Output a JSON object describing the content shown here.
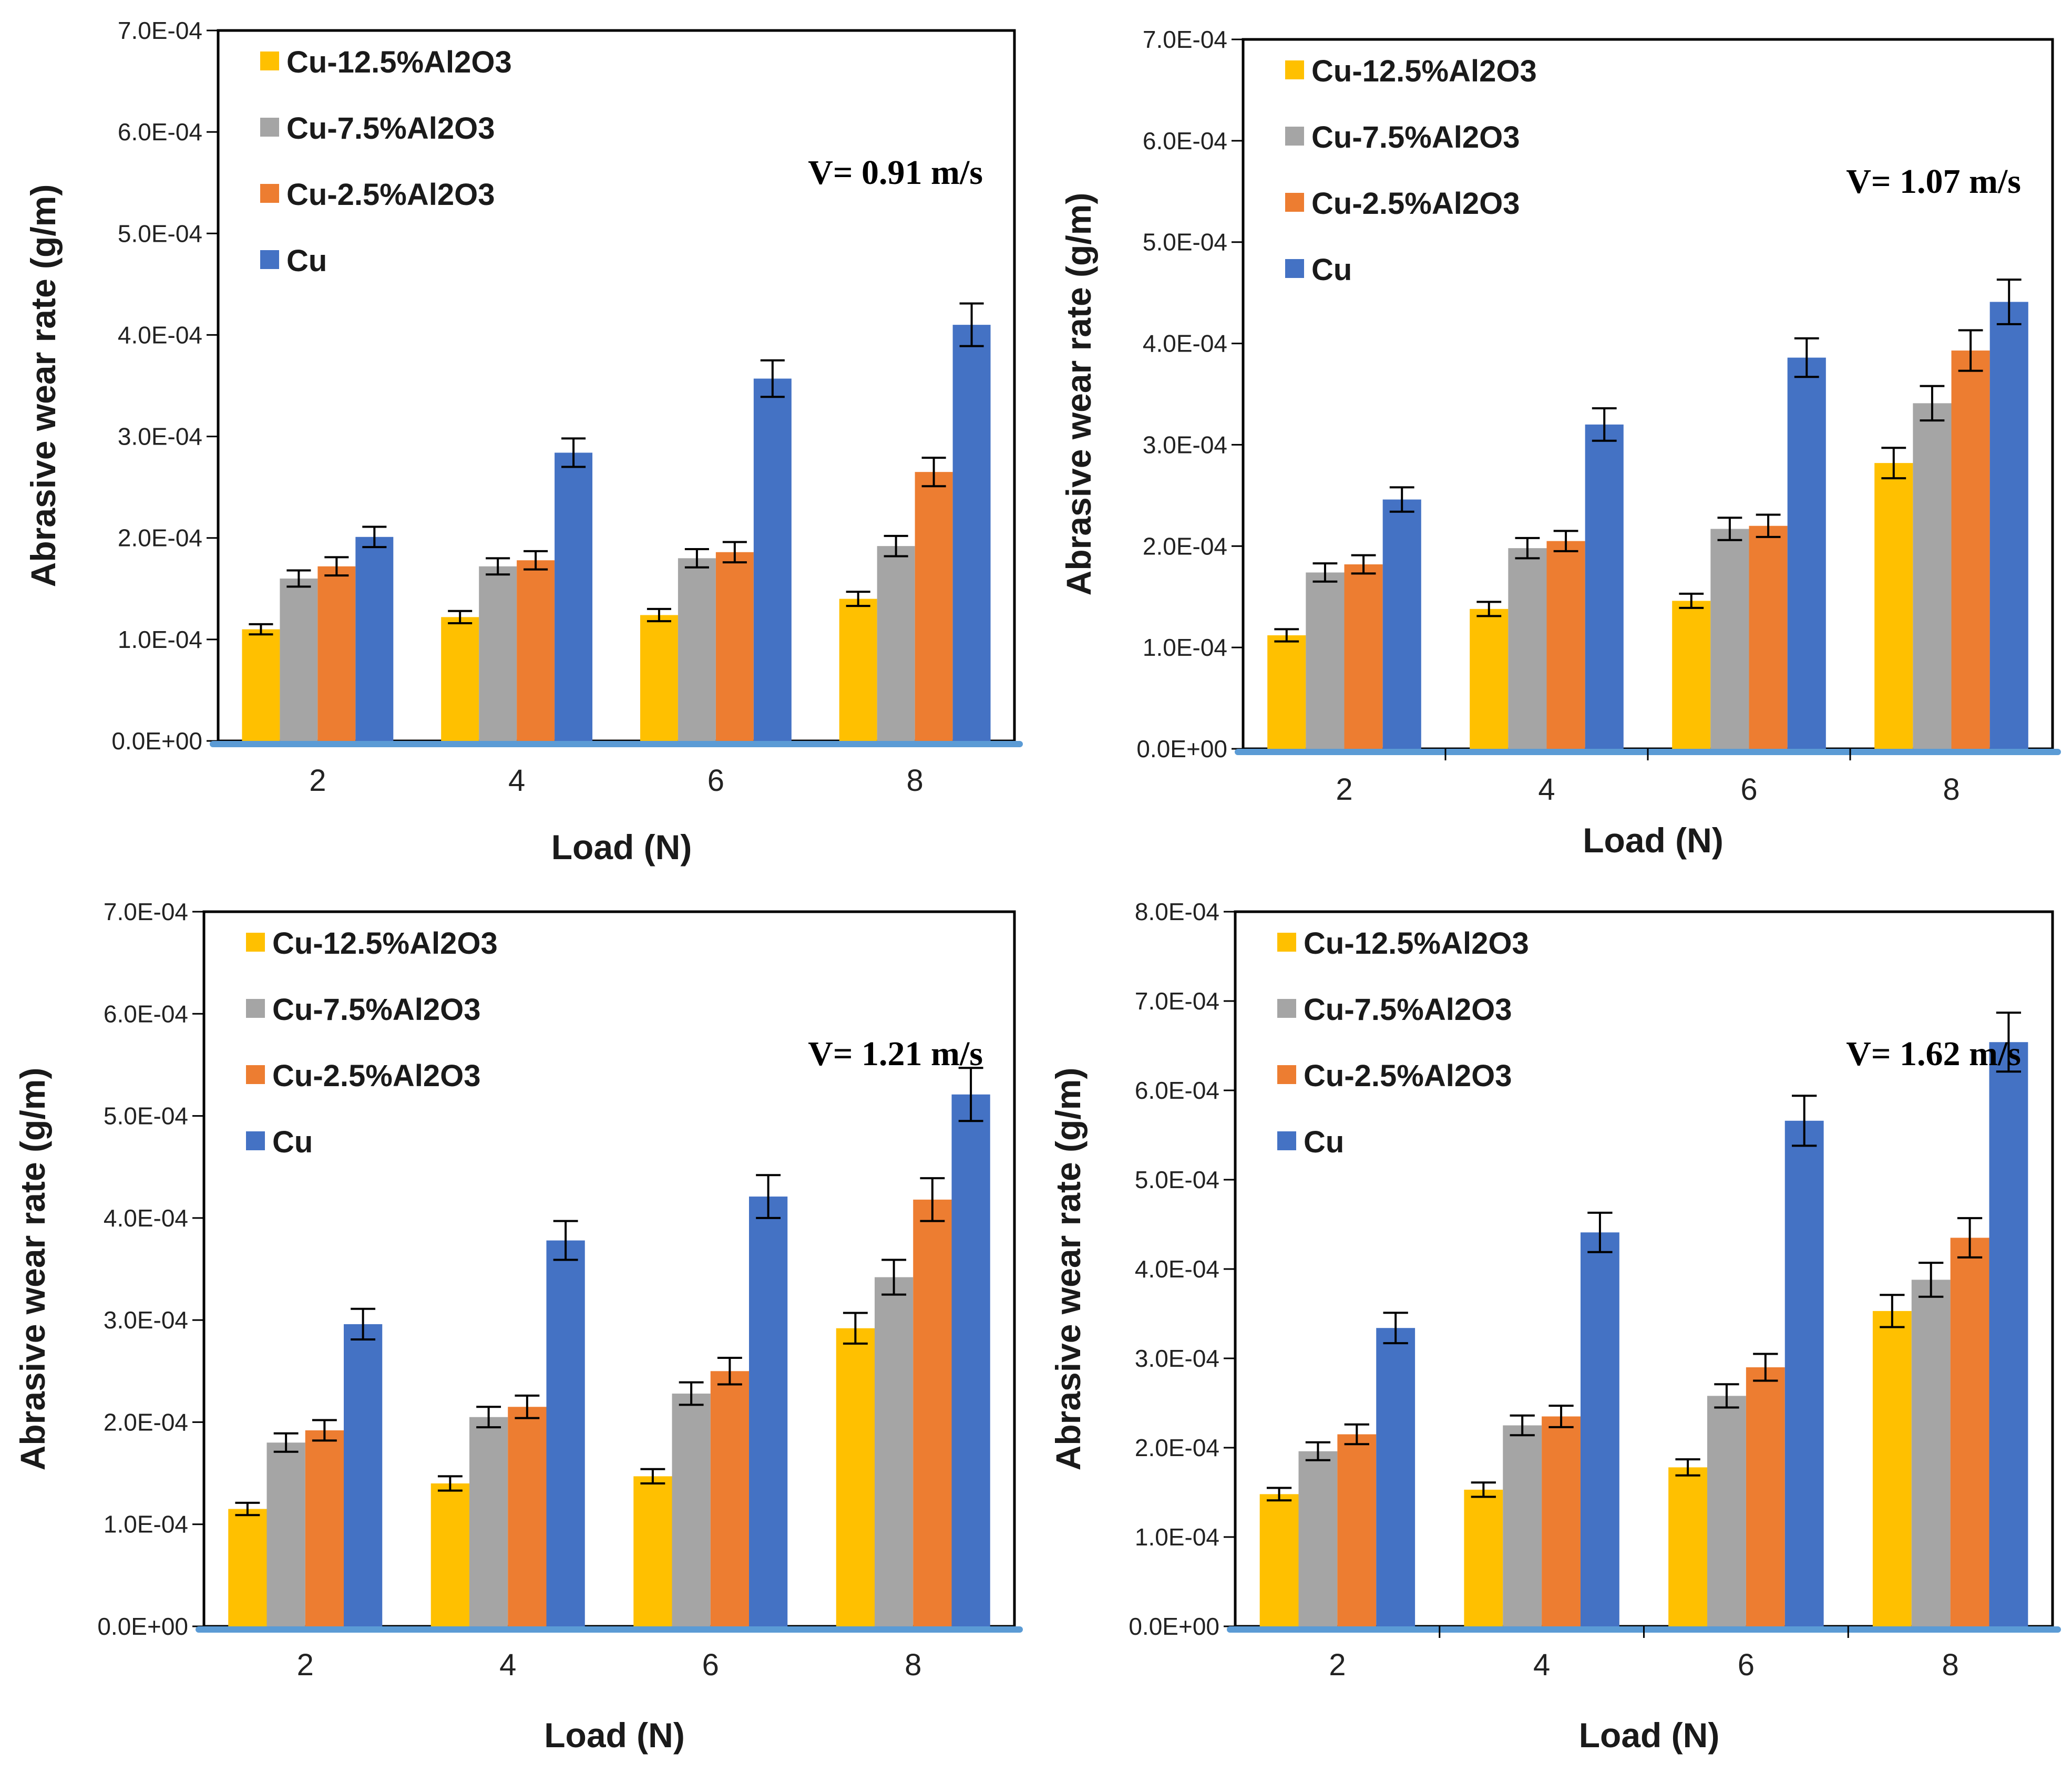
{
  "figure": {
    "ylabel": "Abrasive wear rate (g/m)",
    "xlabel": "Load (N)",
    "series_colors": {
      "Cu-12.5%Al2O3": "#FFC000",
      "Cu-7.5%Al2O3": "#A5A5A5",
      "Cu-2.5%Al2O3": "#ED7D31",
      "Cu": "#4472C4"
    }
  },
  "chart_data": [
    {
      "type": "bar",
      "annotation": "V= 0.91 m/s",
      "xlabel": "Load (N)",
      "ylabel": "Abrasive wear rate (g/m)",
      "categories": [
        "2",
        "4",
        "6",
        "8"
      ],
      "ylim": [
        0,
        0.0007
      ],
      "yticks": [
        0,
        0.0001,
        0.0002,
        0.0003,
        0.0004,
        0.0005,
        0.0006,
        0.0007
      ],
      "ytick_labels": [
        "0.0E+00",
        "1.0E-04",
        "2.0E-04",
        "3.0E-04",
        "4.0E-04",
        "5.0E-04",
        "6.0E-04",
        "7.0E-04"
      ],
      "legend": "top-left",
      "series": [
        {
          "name": "Cu-12.5%Al2O3",
          "color": "#FFC000",
          "values": [
            0.00011,
            0.000122,
            0.000124,
            0.00014
          ],
          "errors": [
            5e-06,
            6e-06,
            6e-06,
            7e-06
          ]
        },
        {
          "name": "Cu-7.5%Al2O3",
          "color": "#A5A5A5",
          "values": [
            0.00016,
            0.000172,
            0.00018,
            0.000192
          ],
          "errors": [
            8e-06,
            8e-06,
            9e-06,
            1e-05
          ]
        },
        {
          "name": "Cu-2.5%Al2O3",
          "color": "#ED7D31",
          "values": [
            0.000172,
            0.000178,
            0.000186,
            0.000265
          ],
          "errors": [
            9e-06,
            9e-06,
            1e-05,
            1.4e-05
          ]
        },
        {
          "name": "Cu",
          "color": "#4472C4",
          "values": [
            0.000201,
            0.000284,
            0.000357,
            0.00041
          ],
          "errors": [
            1e-05,
            1.4e-05,
            1.8e-05,
            2.1e-05
          ]
        }
      ]
    },
    {
      "type": "bar",
      "annotation": "V= 1.07 m/s",
      "xlabel": "Load (N)",
      "ylabel": "Abrasive wear rate (g/m)",
      "categories": [
        "2",
        "4",
        "6",
        "8"
      ],
      "ylim": [
        0,
        0.0007
      ],
      "yticks": [
        0,
        0.0001,
        0.0002,
        0.0003,
        0.0004,
        0.0005,
        0.0006,
        0.0007
      ],
      "ytick_labels": [
        "0.0E+00",
        "1.0E-04",
        "2.0E-04",
        "3.0E-04",
        "4.0E-04",
        "5.0E-04",
        "6.0E-04",
        "7.0E-04"
      ],
      "legend": "top-left",
      "series": [
        {
          "name": "Cu-12.5%Al2O3",
          "color": "#FFC000",
          "values": [
            0.000112,
            0.000138,
            0.000146,
            0.000282
          ],
          "errors": [
            6e-06,
            7e-06,
            7e-06,
            1.5e-05
          ]
        },
        {
          "name": "Cu-7.5%Al2O3",
          "color": "#A5A5A5",
          "values": [
            0.000174,
            0.000198,
            0.000217,
            0.000341
          ],
          "errors": [
            9e-06,
            1e-05,
            1.1e-05,
            1.7e-05
          ]
        },
        {
          "name": "Cu-2.5%Al2O3",
          "color": "#ED7D31",
          "values": [
            0.000182,
            0.000205,
            0.00022,
            0.000393
          ],
          "errors": [
            9e-06,
            1e-05,
            1.1e-05,
            2e-05
          ]
        },
        {
          "name": "Cu",
          "color": "#4472C4",
          "values": [
            0.000246,
            0.00032,
            0.000386,
            0.000441
          ],
          "errors": [
            1.2e-05,
            1.6e-05,
            1.9e-05,
            2.2e-05
          ]
        }
      ]
    },
    {
      "type": "bar",
      "annotation": "V= 1.21 m/s",
      "xlabel": "Load (N)",
      "ylabel": "Abrasive wear rate (g/m)",
      "categories": [
        "2",
        "4",
        "6",
        "8"
      ],
      "ylim": [
        0,
        0.0007
      ],
      "yticks": [
        0,
        0.0001,
        0.0002,
        0.0003,
        0.0004,
        0.0005,
        0.0006,
        0.0007
      ],
      "ytick_labels": [
        "0.0E+00",
        "1.0E-04",
        "2.0E-04",
        "3.0E-04",
        "4.0E-04",
        "5.0E-04",
        "6.0E-04",
        "7.0E-04"
      ],
      "legend": "top-left",
      "series": [
        {
          "name": "Cu-12.5%Al2O3",
          "color": "#FFC000",
          "values": [
            0.000115,
            0.00014,
            0.000147,
            0.000292
          ],
          "errors": [
            6e-06,
            7e-06,
            7e-06,
            1.5e-05
          ]
        },
        {
          "name": "Cu-7.5%Al2O3",
          "color": "#A5A5A5",
          "values": [
            0.00018,
            0.000205,
            0.000228,
            0.000342
          ],
          "errors": [
            9e-06,
            1e-05,
            1.1e-05,
            1.7e-05
          ]
        },
        {
          "name": "Cu-2.5%Al2O3",
          "color": "#ED7D31",
          "values": [
            0.000192,
            0.000215,
            0.00025,
            0.000418
          ],
          "errors": [
            1e-05,
            1.1e-05,
            1.3e-05,
            2.1e-05
          ]
        },
        {
          "name": "Cu",
          "color": "#4472C4",
          "values": [
            0.000296,
            0.000378,
            0.000421,
            0.000521
          ],
          "errors": [
            1.5e-05,
            1.9e-05,
            2.1e-05,
            2.6e-05
          ]
        }
      ]
    },
    {
      "type": "bar",
      "annotation": "V= 1.62 m/s",
      "xlabel": "Load (N)",
      "ylabel": "Abrasive wear rate (g/m)",
      "categories": [
        "2",
        "4",
        "6",
        "8"
      ],
      "ylim": [
        0,
        0.0008
      ],
      "yticks": [
        0,
        0.0001,
        0.0002,
        0.0003,
        0.0004,
        0.0005,
        0.0006,
        0.0007,
        0.0008
      ],
      "ytick_labels": [
        "0.0E+00",
        "1.0E-04",
        "2.0E-04",
        "3.0E-04",
        "4.0E-04",
        "5.0E-04",
        "6.0E-04",
        "7.0E-04",
        "8.0E-04"
      ],
      "legend": "top-left",
      "series": [
        {
          "name": "Cu-12.5%Al2O3",
          "color": "#FFC000",
          "values": [
            0.000148,
            0.000153,
            0.000178,
            0.000353
          ],
          "errors": [
            7e-06,
            8e-06,
            9e-06,
            1.8e-05
          ]
        },
        {
          "name": "Cu-7.5%Al2O3",
          "color": "#A5A5A5",
          "values": [
            0.000196,
            0.000225,
            0.000258,
            0.000388
          ],
          "errors": [
            1e-05,
            1.1e-05,
            1.3e-05,
            1.9e-05
          ]
        },
        {
          "name": "Cu-2.5%Al2O3",
          "color": "#ED7D31",
          "values": [
            0.000215,
            0.000235,
            0.00029,
            0.000435
          ],
          "errors": [
            1.1e-05,
            1.2e-05,
            1.5e-05,
            2.2e-05
          ]
        },
        {
          "name": "Cu",
          "color": "#4472C4",
          "values": [
            0.000334,
            0.000441,
            0.000566,
            0.000654
          ],
          "errors": [
            1.7e-05,
            2.2e-05,
            2.8e-05,
            3.3e-05
          ]
        }
      ]
    }
  ]
}
